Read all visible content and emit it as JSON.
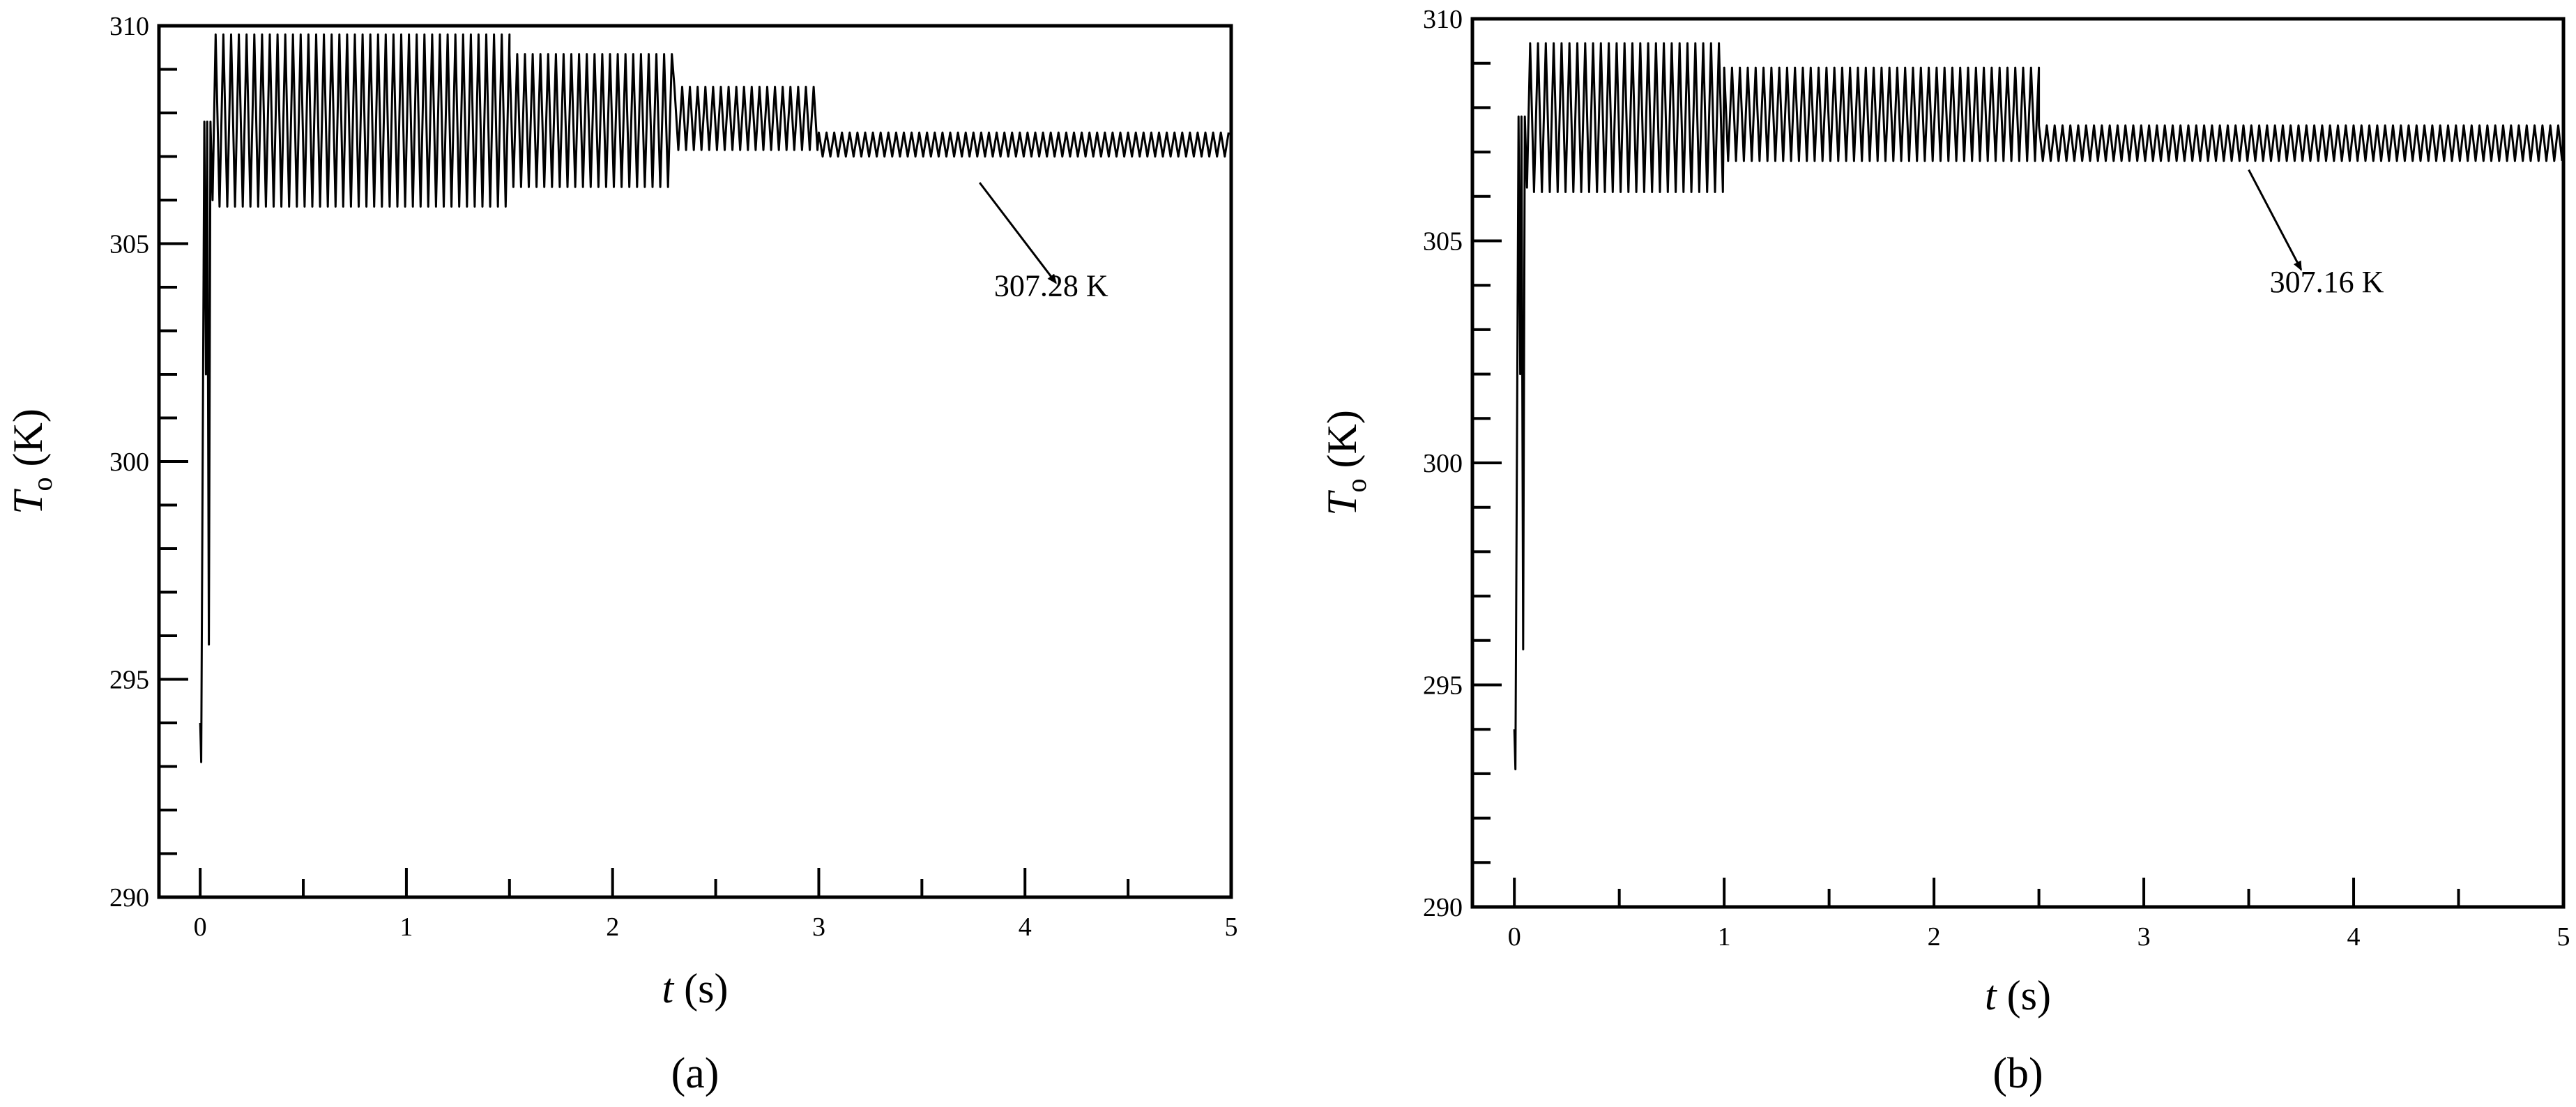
{
  "chart_data": [
    {
      "panel_label": "(a)",
      "type": "line",
      "xlabel": {
        "var": "t",
        "unit": " (s)"
      },
      "ylabel": {
        "var": "T",
        "sub": "o",
        "unit": " (K)"
      },
      "xlim": [
        -0.2,
        5
      ],
      "ylim": [
        290,
        310
      ],
      "xticks": [
        0,
        1,
        2,
        3,
        4,
        5
      ],
      "yticks": [
        290,
        295,
        300,
        305,
        310
      ],
      "x_minor_step": 0.5,
      "y_minor_step": 1,
      "grid": false,
      "series": [
        {
          "initial": [
            [
              0,
              294.0
            ],
            [
              0.005,
              293.1
            ],
            [
              0.02,
              307.8
            ],
            [
              0.028,
              302.0
            ],
            [
              0.034,
              307.8
            ],
            [
              0.042,
              295.8
            ],
            [
              0.05,
              307.8
            ],
            [
              0.06,
              306.0
            ],
            [
              0.075,
              309.8
            ]
          ],
          "segments": [
            {
              "t0": 0.075,
              "t1": 1.5,
              "min": 305.85,
              "max": 309.8,
              "period": 0.0375
            },
            {
              "t0": 1.5,
              "t1": 2.3,
              "min": 306.3,
              "max": 309.35,
              "period": 0.0375
            },
            {
              "t0": 2.3,
              "t1": 3.0,
              "min": 307.15,
              "max": 308.6,
              "period": 0.0375
            },
            {
              "t0": 3.0,
              "t1": 5.0,
              "min": 307.0,
              "max": 307.55,
              "period": 0.0375
            }
          ]
        }
      ],
      "annotation": {
        "text": "307.28 K",
        "x": 3.85,
        "y": 303.8,
        "arrow_from": [
          3.78,
          306.4
        ],
        "arrow_to": [
          4.15,
          304.1
        ]
      }
    },
    {
      "panel_label": "(b)",
      "type": "line",
      "xlabel": {
        "var": "t",
        "unit": " (s)"
      },
      "ylabel": {
        "var": "T",
        "sub": "o",
        "unit": " (K)"
      },
      "xlim": [
        -0.2,
        5
      ],
      "ylim": [
        290,
        310
      ],
      "xticks": [
        0,
        1,
        2,
        3,
        4,
        5
      ],
      "yticks": [
        290,
        295,
        300,
        305,
        310
      ],
      "x_minor_step": 0.5,
      "y_minor_step": 1,
      "grid": false,
      "series": [
        {
          "initial": [
            [
              0,
              294.0
            ],
            [
              0.005,
              293.1
            ],
            [
              0.02,
              307.8
            ],
            [
              0.028,
              302.0
            ],
            [
              0.034,
              307.8
            ],
            [
              0.042,
              295.8
            ],
            [
              0.05,
              307.8
            ],
            [
              0.06,
              306.2
            ],
            [
              0.075,
              309.4
            ]
          ],
          "segments": [
            {
              "t0": 0.075,
              "t1": 1.0,
              "min": 306.1,
              "max": 309.45,
              "period": 0.0375
            },
            {
              "t0": 1.0,
              "t1": 2.5,
              "min": 306.8,
              "max": 308.9,
              "period": 0.0375
            },
            {
              "t0": 2.5,
              "t1": 5.0,
              "min": 306.8,
              "max": 307.6,
              "period": 0.0375
            }
          ]
        }
      ],
      "annotation": {
        "text": "307.16 K",
        "x": 3.6,
        "y": 303.85,
        "arrow_from": [
          3.5,
          306.6
        ],
        "arrow_to": [
          3.75,
          304.35
        ]
      }
    }
  ]
}
